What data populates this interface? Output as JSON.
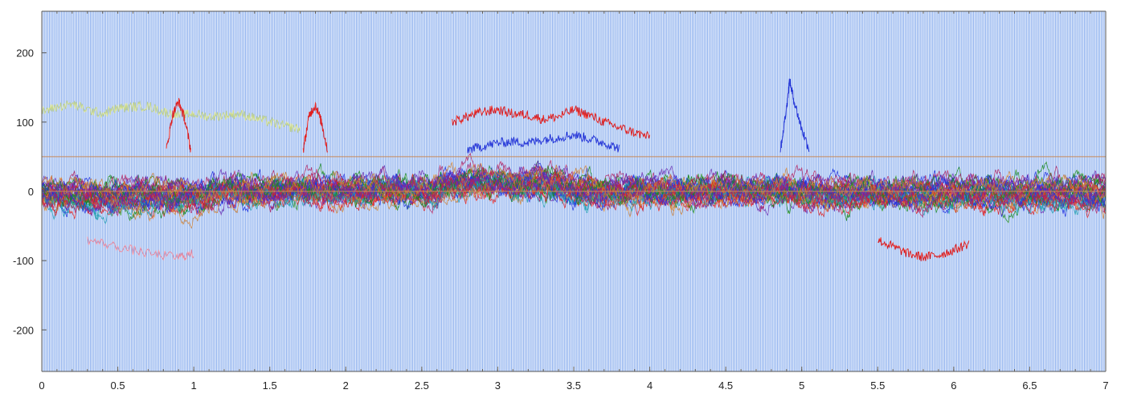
{
  "chart_data": {
    "type": "line",
    "title": "",
    "xlabel": "",
    "ylabel": "",
    "xlim": [
      0,
      7
    ],
    "ylim": [
      -260,
      260
    ],
    "x_ticks": [
      0,
      0.5,
      1,
      1.5,
      2,
      2.5,
      3,
      3.5,
      4,
      4.5,
      5,
      5.5,
      6,
      6.5,
      7
    ],
    "x_tick_labels": [
      "0",
      "0.5",
      "1",
      "1.5",
      "2",
      "2.5",
      "3",
      "3.5",
      "4",
      "4.5",
      "5",
      "5.5",
      "6",
      "6.5",
      "7"
    ],
    "y_ticks": [
      200,
      100,
      0,
      -100,
      -200
    ],
    "y_tick_labels": [
      "200",
      "100",
      "0",
      "-100",
      "-200"
    ],
    "grid": false,
    "legend": "none",
    "reference_lines": [
      {
        "y": 50,
        "color": "#c98a5a"
      },
      {
        "y": 0,
        "color": "#c98a5a"
      }
    ],
    "background_stripes": {
      "color": "#2f6fe0",
      "x_start": 0,
      "x_end": 7,
      "spacing": 0.01,
      "y_range": [
        -260,
        260
      ]
    },
    "series_colors": [
      "#e02020",
      "#2030e0",
      "#1a8a1a",
      "#b02060",
      "#6a2ab0",
      "#d08030",
      "#20a0b0"
    ],
    "series": [
      {
        "color": "#c9d88a",
        "x": [
          0,
          0.1,
          0.2,
          0.3,
          0.4,
          0.5,
          0.6,
          0.7,
          0.8,
          0.9,
          1.0,
          1.1,
          1.2,
          1.3,
          1.4,
          1.5,
          1.6,
          1.7
        ],
        "y": [
          115,
          122,
          126,
          118,
          112,
          120,
          122,
          123,
          115,
          110,
          112,
          108,
          110,
          112,
          106,
          100,
          94,
          90
        ]
      },
      {
        "color": "#e02020",
        "x": [
          2.7,
          2.8,
          2.9,
          3.0,
          3.1,
          3.2,
          3.3,
          3.4,
          3.5,
          3.6,
          3.7,
          3.8,
          3.9,
          4.0
        ],
        "y": [
          100,
          108,
          115,
          118,
          112,
          110,
          104,
          108,
          118,
          110,
          100,
          92,
          85,
          78
        ]
      },
      {
        "color": "#2a3ad8",
        "x": [
          2.8,
          2.9,
          3.0,
          3.1,
          3.2,
          3.3,
          3.4,
          3.5,
          3.6,
          3.7,
          3.8
        ],
        "y": [
          60,
          65,
          70,
          72,
          70,
          75,
          78,
          82,
          76,
          70,
          62
        ]
      },
      {
        "color": "#e02020",
        "x": [
          0.82,
          0.86,
          0.9,
          0.94,
          0.98
        ],
        "y": [
          60,
          110,
          130,
          105,
          60
        ]
      },
      {
        "color": "#e02020",
        "x": [
          1.72,
          1.76,
          1.8,
          1.84,
          1.88
        ],
        "y": [
          60,
          110,
          125,
          100,
          60
        ]
      },
      {
        "color": "#2a3ad8",
        "x": [
          4.86,
          4.9,
          4.92,
          4.95,
          5.0,
          5.05
        ],
        "y": [
          60,
          120,
          160,
          130,
          90,
          60
        ]
      },
      {
        "color": "#e02020",
        "x": [
          5.5,
          5.6,
          5.7,
          5.8,
          5.9,
          6.0,
          6.1
        ],
        "y": [
          -70,
          -80,
          -90,
          -95,
          -92,
          -85,
          -75
        ]
      },
      {
        "color": "#e88aa0",
        "x": [
          0.3,
          0.5,
          0.7,
          0.9,
          1.0
        ],
        "y": [
          -70,
          -80,
          -90,
          -95,
          -90
        ]
      }
    ]
  }
}
